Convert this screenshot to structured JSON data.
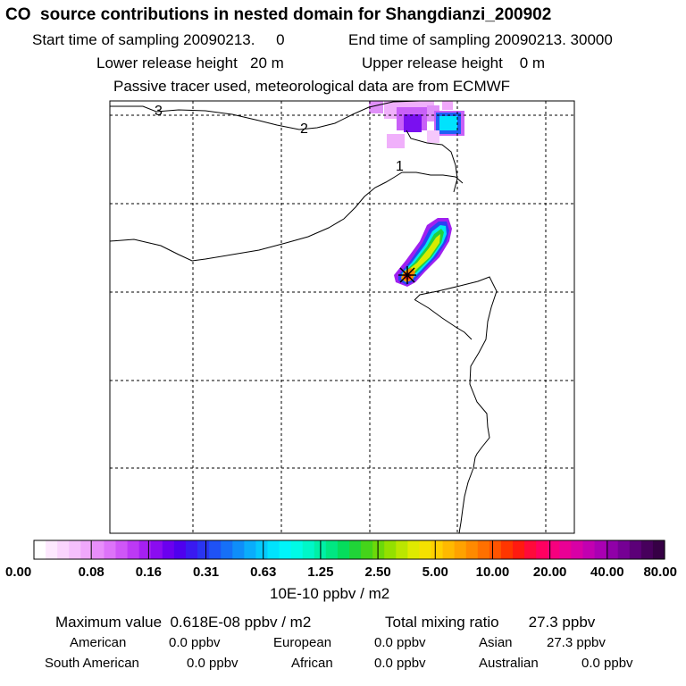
{
  "header": {
    "title": "CO  source contributions in nested domain for Shangdianzi_200902",
    "start_label": "Start time of sampling 20090213.     0",
    "end_label": "End time of sampling 20090213. 30000",
    "lower_label": "Lower release height   20 m",
    "upper_label": "Upper release height    0 m",
    "tracer_label": "Passive tracer used, meteorological data are from ECMWF"
  },
  "chart_data": {
    "type": "heatmap",
    "title": "CO  source contributions in nested domain for Shangdianzi_200902",
    "units": "10E-10 ppbv / m2",
    "contour_labels": [
      "3",
      "2",
      "1"
    ],
    "color_scale": {
      "tick_labels": [
        "0.00",
        "0.08",
        "0.16",
        "0.31",
        "0.63",
        "1.25",
        "2.50",
        "5.00",
        "10.00",
        "20.00",
        "40.00",
        "80.00"
      ],
      "colors": [
        "#ffffff",
        "#fde8fe",
        "#fad4fd",
        "#f5c0fc",
        "#f0a8fb",
        "#e88efa",
        "#dd73f9",
        "#cf56f7",
        "#bd39f5",
        "#a620f2",
        "#8b0cf0",
        "#6b00ef",
        "#4f00ee",
        "#3a1af0",
        "#2a35f2",
        "#1f52f5",
        "#1670f7",
        "#0f8ef9",
        "#0aadfb",
        "#05c9fc",
        "#00e3fd",
        "#00f5fa",
        "#00fbe6",
        "#00f7c8",
        "#00f0a6",
        "#00e782",
        "#05dd5c",
        "#20d438",
        "#45d41a",
        "#6cd90a",
        "#94e000",
        "#bbe600",
        "#dfea00",
        "#f5e100",
        "#ffcf00",
        "#ffb900",
        "#ffa200",
        "#ff8a00",
        "#ff7000",
        "#ff5400",
        "#ff3600",
        "#ff1a10",
        "#ff0a3a",
        "#ff0060",
        "#f7007e",
        "#ea0095",
        "#d800a6",
        "#c200b1",
        "#aa00b3",
        "#9000a8",
        "#750094",
        "#5c0078",
        "#47005c",
        "#360045"
      ]
    }
  },
  "stats": {
    "max_label": "Maximum value  0.618E-08 ppbv / m2",
    "total_label": "Total mixing ratio       27.3 ppbv",
    "regions": [
      {
        "name": "American",
        "value": "0.0 ppbv"
      },
      {
        "name": "European",
        "value": "0.0 ppbv"
      },
      {
        "name": "Asian",
        "value": "27.3 ppbv"
      },
      {
        "name": "South American",
        "value": "0.0 ppbv"
      },
      {
        "name": "African",
        "value": "0.0 ppbv"
      },
      {
        "name": "Australian",
        "value": "0.0 ppbv"
      }
    ]
  }
}
